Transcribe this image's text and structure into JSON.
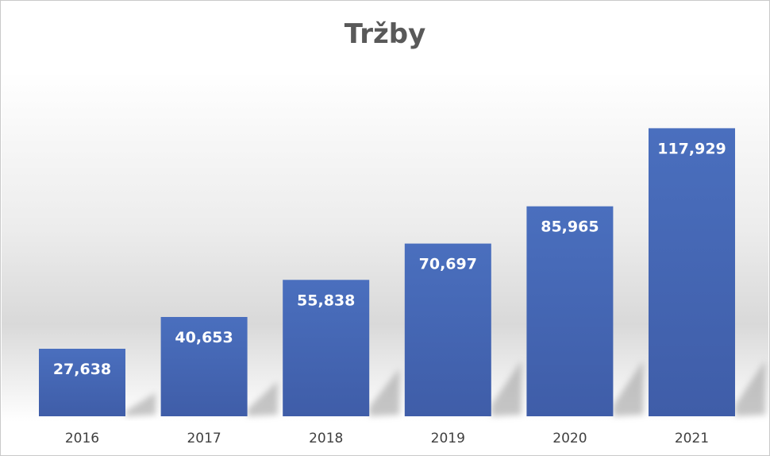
{
  "chart_data": {
    "type": "bar",
    "title": "Tržby",
    "categories": [
      "2016",
      "2017",
      "2018",
      "2019",
      "2020",
      "2021"
    ],
    "values": [
      27638,
      40653,
      55838,
      70697,
      85965,
      117929
    ],
    "data_labels": [
      "27,638",
      "40,653",
      "55,838",
      "70,697",
      "85,965",
      "117,929"
    ],
    "xlabel": "",
    "ylabel": "",
    "ylim": [
      0,
      130000
    ],
    "grid": false,
    "legend": "none",
    "bar_color": "#4a6fbe",
    "bar_color_dark": "#3f5da8"
  }
}
